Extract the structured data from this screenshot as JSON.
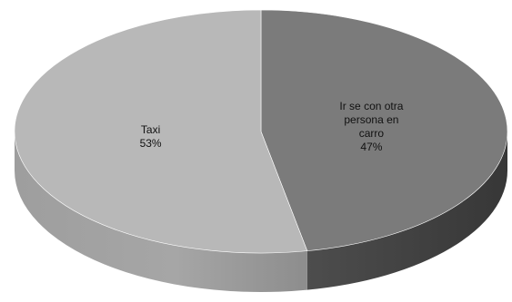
{
  "chart_data": {
    "type": "pie",
    "style": "3d",
    "slices": [
      {
        "label_lines": [
          "Ir se con otra",
          "persona en",
          "carro"
        ],
        "value": 47,
        "percent_label": "47%",
        "color": "#7b7b7b"
      },
      {
        "label_lines": [
          "Taxi"
        ],
        "value": 53,
        "percent_label": "53%",
        "color": "#b8b8b8"
      }
    ],
    "legend": "none",
    "title": ""
  }
}
